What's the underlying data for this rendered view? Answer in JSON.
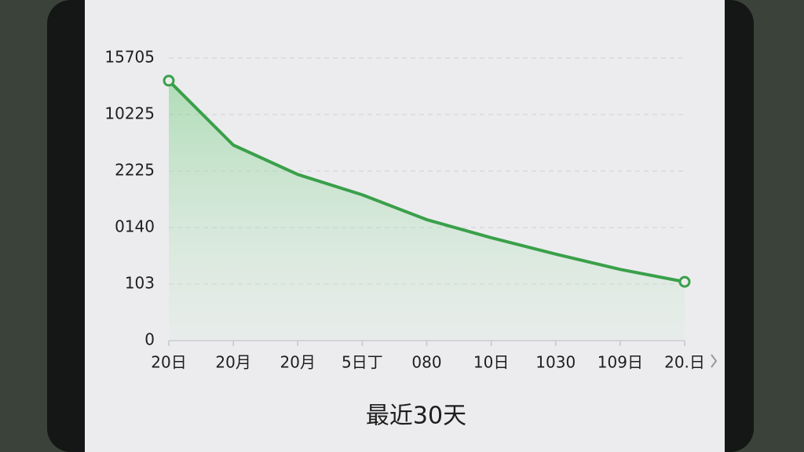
{
  "chart_data": {
    "type": "line",
    "categories": [
      "20日",
      "20月",
      "20月",
      "5日丁",
      "080",
      "10日",
      "1030",
      "109日",
      "20.日"
    ],
    "series": [
      {
        "color": "#3aa04a",
        "values": [
          4.6,
          3.46,
          2.94,
          2.58,
          2.14,
          1.82,
          1.53,
          1.26,
          1.04
        ]
      }
    ],
    "ylim": [
      0,
      5
    ],
    "yticks": [
      0,
      {
        "value": 1,
        "label": "103"
      },
      {
        "value": 2,
        "label": "0140"
      },
      {
        "value": 3,
        "label": "2225"
      },
      {
        "value": 4,
        "label": "10225"
      },
      {
        "value": 5,
        "label": "15705"
      }
    ],
    "grid": true,
    "period_label": "最近30天"
  }
}
